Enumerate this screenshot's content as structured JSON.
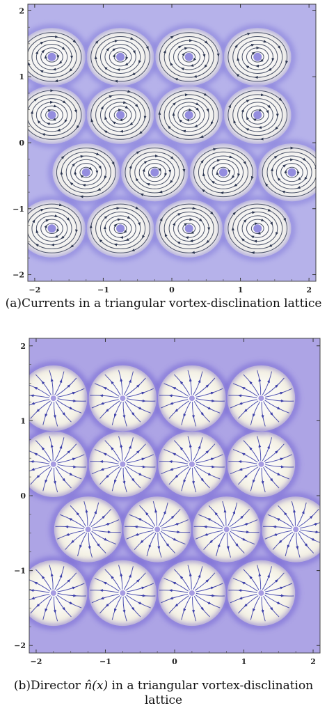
{
  "chart_data": [
    {
      "type": "vector-field",
      "panel": "a",
      "title": "",
      "xlabel": "",
      "ylabel": "",
      "xlim": [
        -2.1,
        2.1
      ],
      "ylim": [
        -2.1,
        2.1
      ],
      "x_ticks": [
        "-2",
        "-1",
        "0",
        "1",
        "2"
      ],
      "y_ticks": [
        "-2",
        "-1",
        "0",
        "1",
        "2"
      ],
      "lattice": "triangular",
      "field": "closed circular stream loops around vortex centres on a blue density background",
      "vortex_centres": [
        [
          -1.75,
          1.3
        ],
        [
          -0.75,
          1.3
        ],
        [
          0.25,
          1.3
        ],
        [
          1.25,
          1.3
        ],
        [
          -1.75,
          0.42
        ],
        [
          -0.75,
          0.42
        ],
        [
          0.25,
          0.42
        ],
        [
          1.25,
          0.42
        ],
        [
          -1.25,
          -0.45
        ],
        [
          -0.25,
          -0.45
        ],
        [
          0.75,
          -0.45
        ],
        [
          1.75,
          -0.45
        ],
        [
          -1.75,
          -1.3
        ],
        [
          -0.75,
          -1.3
        ],
        [
          0.25,
          -1.3
        ],
        [
          1.25,
          -1.3
        ]
      ],
      "colors": {
        "background": "#eae8e4",
        "density": "#7a72d8",
        "stream": "#2b3550"
      }
    },
    {
      "type": "vector-field",
      "panel": "b",
      "title": "",
      "xlabel": "",
      "ylabel": "",
      "xlim": [
        -2.1,
        2.1
      ],
      "ylim": [
        -2.1,
        2.1
      ],
      "x_ticks": [
        "-2",
        "-1",
        "0",
        "1",
        "2"
      ],
      "y_ticks": [
        "-2",
        "-1",
        "0",
        "1",
        "2"
      ],
      "lattice": "triangular",
      "field": "radial director streamlines emanating from disclination centres inside hexagonal domains",
      "vortex_centres": [
        [
          -1.75,
          1.3
        ],
        [
          -0.75,
          1.3
        ],
        [
          0.25,
          1.3
        ],
        [
          1.25,
          1.3
        ],
        [
          -1.75,
          0.42
        ],
        [
          -0.75,
          0.42
        ],
        [
          0.25,
          0.42
        ],
        [
          1.25,
          0.42
        ],
        [
          -1.25,
          -0.45
        ],
        [
          -0.25,
          -0.45
        ],
        [
          0.75,
          -0.45
        ],
        [
          1.75,
          -0.45
        ],
        [
          -1.75,
          -1.3
        ],
        [
          -0.75,
          -1.3
        ],
        [
          0.25,
          -1.3
        ],
        [
          1.25,
          -1.3
        ]
      ],
      "colors": {
        "background": "#f0ecdc",
        "density": "#6a5ad0",
        "stream": "#3b3ea8"
      }
    }
  ],
  "captions": {
    "a": "(a)Currents in a triangular vortex-disclination lattice",
    "b_prefix": "(b)Director ",
    "b_math": "n̂(x)",
    "b_suffix": " in a triangular vortex-disclination lattice"
  }
}
